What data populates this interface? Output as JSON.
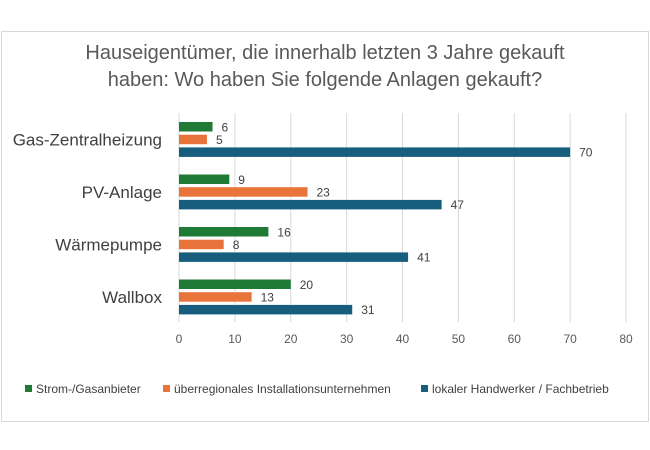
{
  "chart_data": {
    "type": "bar",
    "orientation": "horizontal",
    "title_lines": [
      "Hauseigentümer, die innerhalb letzten 3 Jahre gekauft",
      "haben: Wo haben Sie folgende Anlagen gekauft?"
    ],
    "categories": [
      "Gas-Zentralheizung",
      "PV-Anlage",
      "Wärmepumpe",
      "Wallbox"
    ],
    "series": [
      {
        "name": "Strom-/Gasanbieter",
        "color": "#1e7a34",
        "values": [
          6,
          9,
          16,
          20
        ]
      },
      {
        "name": "überregionales Installationsunternehmen",
        "color": "#e8743b",
        "values": [
          5,
          23,
          8,
          13
        ]
      },
      {
        "name": "lokaler Handwerker / Fachbetrieb",
        "color": "#175e7e",
        "values": [
          70,
          47,
          41,
          31
        ]
      }
    ],
    "xlim": [
      0,
      80
    ],
    "xticks": [
      0,
      10,
      20,
      30,
      40,
      50,
      60,
      70,
      80
    ],
    "grid": true,
    "legend_position": "bottom"
  }
}
